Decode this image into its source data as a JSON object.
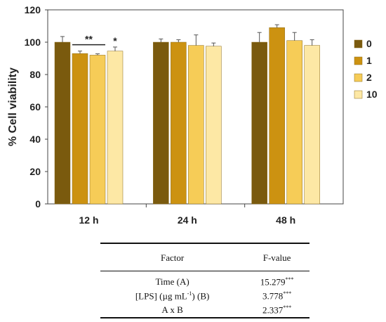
{
  "chart_data": {
    "type": "bar",
    "categories": [
      "12 h",
      "24 h",
      "48 h"
    ],
    "ylabel": "% Cell viability",
    "ylim": [
      0,
      120
    ],
    "yticks": [
      0,
      20,
      40,
      60,
      80,
      100,
      120
    ],
    "legend_placement": "right",
    "series": [
      {
        "name": "0",
        "color": "#7a5a0e",
        "values": [
          100,
          100,
          100
        ],
        "errors": [
          3.5,
          2,
          6
        ]
      },
      {
        "name": "1",
        "color": "#cc9211",
        "values": [
          93,
          100,
          109
        ],
        "errors": [
          1.5,
          1.5,
          1.8
        ]
      },
      {
        "name": "2",
        "color": "#f6cc57",
        "values": [
          92,
          98,
          101
        ],
        "errors": [
          0.8,
          6.5,
          5
        ]
      },
      {
        "name": "10",
        "color": "#fde8a5",
        "values": [
          94.5,
          97.5,
          98
        ],
        "errors": [
          2.5,
          2,
          3.5
        ]
      }
    ],
    "annotations": [
      {
        "text": "**",
        "group": "12 h",
        "span": [
          "1",
          "2"
        ]
      },
      {
        "text": "*",
        "group": "12 h",
        "series": "10"
      }
    ]
  },
  "table": {
    "headers": [
      "Factor",
      "F-value"
    ],
    "rows": [
      {
        "factor": "Time (A)",
        "factor_sup": "",
        "factor_after": "",
        "value": "15.279",
        "sig": "***"
      },
      {
        "factor": "[LPS] (µg mL",
        "factor_sup": "-1",
        "factor_after": ") (B)",
        "value": "3.778",
        "sig": "***"
      },
      {
        "factor": "A x B",
        "factor_sup": "",
        "factor_after": "",
        "value": "2.337",
        "sig": "***"
      }
    ]
  }
}
